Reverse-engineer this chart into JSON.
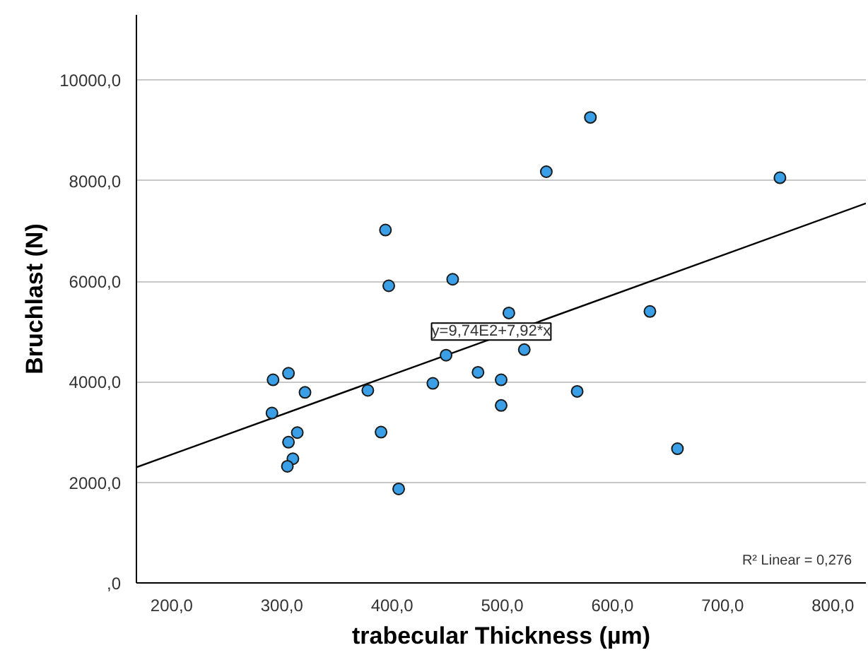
{
  "chart_data": {
    "type": "scatter",
    "xlabel": "trabecular Thickness (µm)",
    "ylabel": "Bruchlast (N)",
    "xlim": [
      168,
      830
    ],
    "ylim": [
      0,
      11300
    ],
    "xticks": [
      {
        "value": 200,
        "label": "200,0"
      },
      {
        "value": 300,
        "label": "300,0"
      },
      {
        "value": 400,
        "label": "400,0"
      },
      {
        "value": 500,
        "label": "500,0"
      },
      {
        "value": 600,
        "label": "600,0"
      },
      {
        "value": 700,
        "label": "700,0"
      },
      {
        "value": 800,
        "label": "800,0"
      }
    ],
    "yticks": [
      {
        "value": 0,
        "label": ",0"
      },
      {
        "value": 2000,
        "label": "2000,0"
      },
      {
        "value": 4000,
        "label": "4000,0"
      },
      {
        "value": 6000,
        "label": "6000,0"
      },
      {
        "value": 8000,
        "label": "8000,0"
      },
      {
        "value": 10000,
        "label": "10000,0"
      }
    ],
    "grid": "y",
    "series": [
      {
        "marker": "circle",
        "color": "#3a9fe6",
        "x": [
          394,
          397,
          455,
          292,
          306,
          321,
          291,
          378,
          437,
          449,
          478,
          390,
          314,
          306,
          310,
          305,
          406,
          580,
          540,
          752,
          506,
          634,
          520,
          499,
          499,
          568,
          659
        ],
        "values": [
          7020,
          5910,
          6040,
          4040,
          4170,
          3790,
          3380,
          3830,
          3970,
          4530,
          4190,
          3000,
          2990,
          2800,
          2470,
          2320,
          1870,
          9260,
          8180,
          8060,
          5370,
          5400,
          4640,
          4040,
          3530,
          3810,
          2670
        ]
      },
      {
        "type": "line",
        "marker": "none",
        "color": "#000000",
        "x": [
          168,
          830
        ],
        "values": [
          2300,
          7550
        ]
      }
    ],
    "annotations": [
      {
        "text": "y=9,74E2+7,92*x",
        "x": 490,
        "y": 5000
      },
      "R² Linear = 0,276"
    ]
  }
}
